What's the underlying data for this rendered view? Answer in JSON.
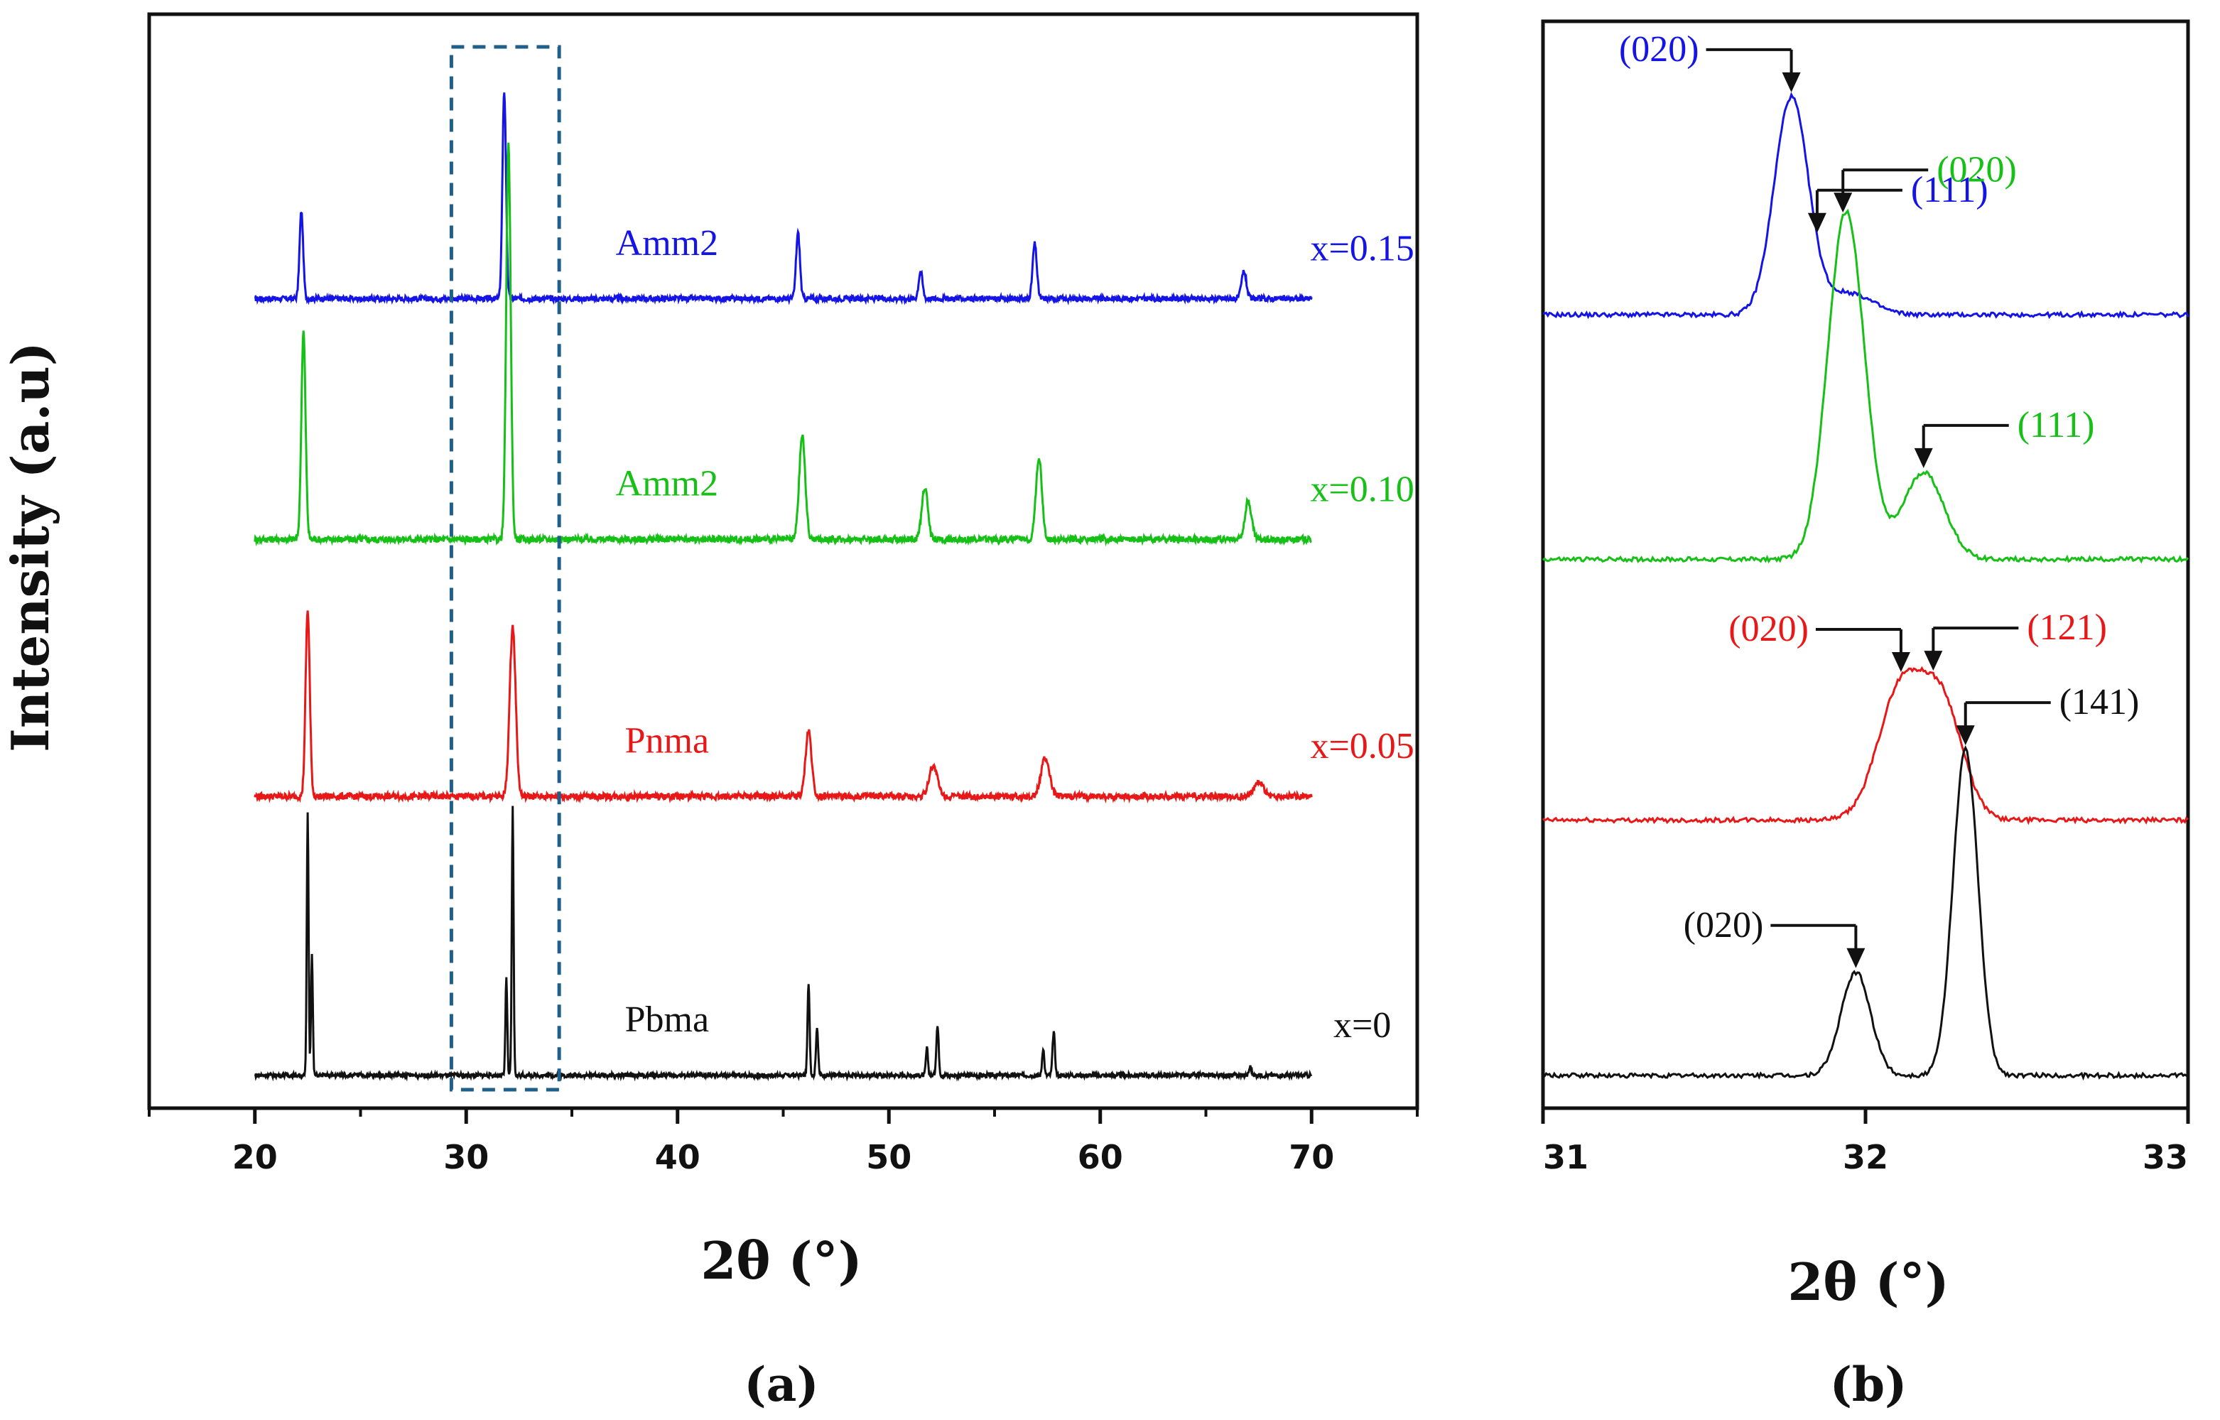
{
  "colors": {
    "x015": "#1414e6",
    "x010": "#16c016",
    "x005": "#e81818",
    "x0": "#111111",
    "highlight_box": "#1f5f8b"
  },
  "panel_labels": {
    "a": "(a)",
    "b": "(b)"
  },
  "y_axis_title": "Intensity (a.u)",
  "chart_data": [
    {
      "type": "line",
      "id": "a",
      "xlabel": "2θ (°)",
      "ylabel": "Intensity (a.u)",
      "xlim": [
        15,
        75
      ],
      "xticks": [
        20,
        30,
        40,
        50,
        60,
        70
      ],
      "xtick_labels": [
        "20",
        "30",
        "40",
        "50",
        "60",
        "70"
      ],
      "plot_range": [
        20,
        70
      ],
      "highlight_box": [
        29.3,
        34.4
      ],
      "series": [
        {
          "name": "x=0.15",
          "phase": "Amm2",
          "color_key": "x015",
          "offset": 0.74,
          "peaks": [
            [
              22.2,
              0.08,
              0.12
            ],
            [
              31.8,
              0.19,
              0.12
            ],
            [
              45.7,
              0.06,
              0.13
            ],
            [
              51.5,
              0.025,
              0.13
            ],
            [
              56.9,
              0.05,
              0.14
            ],
            [
              66.8,
              0.025,
              0.16
            ]
          ],
          "noise": 0.0025
        },
        {
          "name": "x=0.10",
          "phase": "Amm2",
          "color_key": "x010",
          "offset": 0.52,
          "peaks": [
            [
              22.3,
              0.19,
              0.14
            ],
            [
              32.0,
              0.36,
              0.15
            ],
            [
              45.9,
              0.095,
              0.2
            ],
            [
              51.7,
              0.048,
              0.2
            ],
            [
              57.1,
              0.075,
              0.2
            ],
            [
              67.0,
              0.035,
              0.22
            ]
          ],
          "noise": 0.003
        },
        {
          "name": "x=0.05",
          "phase": "Pnma",
          "color_key": "x005",
          "offset": 0.285,
          "peaks": [
            [
              22.5,
              0.17,
              0.14
            ],
            [
              32.2,
              0.155,
              0.2
            ],
            [
              46.2,
              0.06,
              0.2
            ],
            [
              52.1,
              0.028,
              0.28
            ],
            [
              57.4,
              0.035,
              0.28
            ],
            [
              67.5,
              0.012,
              0.35
            ]
          ],
          "noise": 0.003
        },
        {
          "name": "x=0",
          "phase": "Pbma",
          "color_key": "x0",
          "offset": 0.03,
          "peaks": [
            [
              22.5,
              0.24,
              0.06
            ],
            [
              22.7,
              0.11,
              0.06
            ],
            [
              31.9,
              0.09,
              0.06
            ],
            [
              32.2,
              0.245,
              0.06
            ],
            [
              46.2,
              0.085,
              0.07
            ],
            [
              46.6,
              0.045,
              0.07
            ],
            [
              51.8,
              0.025,
              0.07
            ],
            [
              52.3,
              0.045,
              0.08
            ],
            [
              57.3,
              0.025,
              0.07
            ],
            [
              57.8,
              0.04,
              0.08
            ],
            [
              67.1,
              0.008,
              0.08
            ]
          ],
          "noise": 0.002
        }
      ]
    },
    {
      "type": "line",
      "id": "b",
      "xlabel": "2θ (°)",
      "xlim": [
        31,
        33
      ],
      "xticks": [
        31,
        32,
        33
      ],
      "xtick_labels": [
        "31",
        "32",
        "33"
      ],
      "series": [
        {
          "name": "x=0.15",
          "color_key": "x015",
          "offset": 0.73,
          "peaks": [
            [
              31.77,
              0.2,
              0.075
            ]
          ],
          "tail": [
            31.95,
            0.02,
            0.1
          ],
          "reflections": [
            {
              "hkl": "(020)",
              "x": 31.77,
              "side": "left"
            },
            {
              "hkl": "(111)",
              "x": 31.85,
              "side": "right"
            }
          ]
        },
        {
          "name": "x=0.10",
          "color_key": "x010",
          "offset": 0.505,
          "peaks": [
            [
              31.94,
              0.32,
              0.08
            ],
            [
              32.18,
              0.08,
              0.09
            ]
          ],
          "reflections": [
            {
              "hkl": "(020)",
              "x": 31.93,
              "side": "right"
            },
            {
              "hkl": "(111)",
              "x": 32.18,
              "side": "right"
            }
          ]
        },
        {
          "name": "x=0.05",
          "color_key": "x005",
          "offset": 0.265,
          "peaks": [
            [
              32.11,
              0.12,
              0.1
            ],
            [
              32.24,
              0.1,
              0.09
            ]
          ],
          "reflections": [
            {
              "hkl": "(020)",
              "x": 32.11,
              "side": "left"
            },
            {
              "hkl": "(121)",
              "x": 32.21,
              "side": "right"
            }
          ]
        },
        {
          "name": "x=0",
          "color_key": "x0",
          "offset": 0.03,
          "peaks": [
            [
              31.97,
              0.095,
              0.065
            ],
            [
              32.31,
              0.3,
              0.055
            ]
          ],
          "reflections": [
            {
              "hkl": "(020)",
              "x": 31.97,
              "side": "left"
            },
            {
              "hkl": "(141)",
              "x": 32.31,
              "side": "right"
            }
          ]
        }
      ]
    }
  ]
}
